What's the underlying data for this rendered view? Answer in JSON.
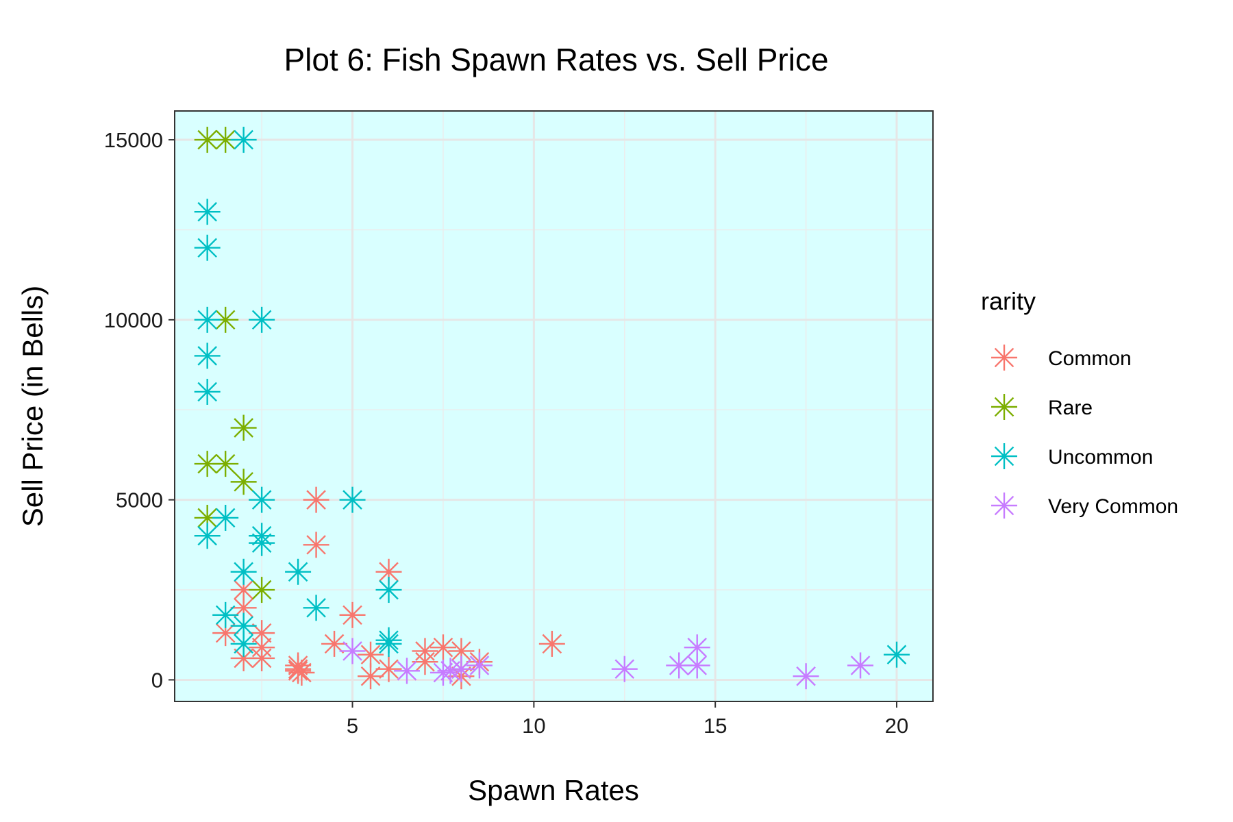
{
  "chart_data": {
    "type": "scatter",
    "title": "Plot 6: Fish Spawn Rates vs. Sell Price",
    "xlabel": "Spawn Rates",
    "ylabel": "Sell Price (in Bells)",
    "xlim": [
      0.1,
      21
    ],
    "ylim": [
      -600,
      15800
    ],
    "xticks": [
      5,
      10,
      15,
      20
    ],
    "xtick_labels": [
      "5",
      "10",
      "15",
      "20"
    ],
    "yticks": [
      0,
      5000,
      10000,
      15000
    ],
    "ytick_labels": [
      "0",
      "5000",
      "10000",
      "15000"
    ],
    "grid": true,
    "panel_background": "#d9ffff",
    "marker": "asterisk",
    "legend": {
      "title": "rarity",
      "position": "right"
    },
    "series": [
      {
        "name": "Common",
        "color": "#f8766d",
        "points": [
          [
            4,
            5000
          ],
          [
            4,
            3750
          ],
          [
            6,
            3000
          ],
          [
            5,
            1800
          ],
          [
            2,
            2500
          ],
          [
            2,
            2000
          ],
          [
            1.5,
            1300
          ],
          [
            2.5,
            1300
          ],
          [
            2,
            600
          ],
          [
            2.5,
            600
          ],
          [
            2.5,
            900
          ],
          [
            3.5,
            400
          ],
          [
            3.5,
            250
          ],
          [
            3.5,
            300
          ],
          [
            4.5,
            1000
          ],
          [
            5.5,
            700
          ],
          [
            5.5,
            100
          ],
          [
            6,
            300
          ],
          [
            7,
            800
          ],
          [
            7,
            500
          ],
          [
            7.5,
            900
          ],
          [
            8,
            800
          ],
          [
            8,
            100
          ],
          [
            8,
            300
          ],
          [
            8.5,
            500
          ],
          [
            10.5,
            1000
          ],
          [
            3.6,
            200
          ]
        ]
      },
      {
        "name": "Rare",
        "color": "#7cae00",
        "points": [
          [
            1,
            15000
          ],
          [
            1.5,
            15000
          ],
          [
            1.5,
            10000
          ],
          [
            2,
            7000
          ],
          [
            1,
            6000
          ],
          [
            1.5,
            6000
          ],
          [
            2,
            5500
          ],
          [
            1,
            4500
          ],
          [
            2.5,
            2500
          ]
        ]
      },
      {
        "name": "Uncommon",
        "color": "#00bfc4",
        "points": [
          [
            2,
            15000
          ],
          [
            1,
            13000
          ],
          [
            1,
            12000
          ],
          [
            1,
            10000
          ],
          [
            2.5,
            10000
          ],
          [
            1,
            9000
          ],
          [
            1,
            8000
          ],
          [
            2.5,
            5000
          ],
          [
            5,
            5000
          ],
          [
            1.5,
            4500
          ],
          [
            1,
            4000
          ],
          [
            2.5,
            4000
          ],
          [
            2.5,
            3800
          ],
          [
            2,
            3000
          ],
          [
            3.5,
            3000
          ],
          [
            6,
            2500
          ],
          [
            4,
            2000
          ],
          [
            1.5,
            1800
          ],
          [
            2,
            1500
          ],
          [
            2,
            1000
          ],
          [
            6,
            1100
          ],
          [
            6,
            1000
          ],
          [
            20,
            700
          ]
        ]
      },
      {
        "name": "Very Common",
        "color": "#c77cff",
        "points": [
          [
            5,
            800
          ],
          [
            6.5,
            250
          ],
          [
            7.5,
            200
          ],
          [
            7.7,
            250
          ],
          [
            8,
            300
          ],
          [
            8.5,
            400
          ],
          [
            12.5,
            300
          ],
          [
            14,
            400
          ],
          [
            14.5,
            400
          ],
          [
            14.5,
            900
          ],
          [
            17.5,
            100
          ],
          [
            19,
            400
          ]
        ]
      }
    ]
  }
}
